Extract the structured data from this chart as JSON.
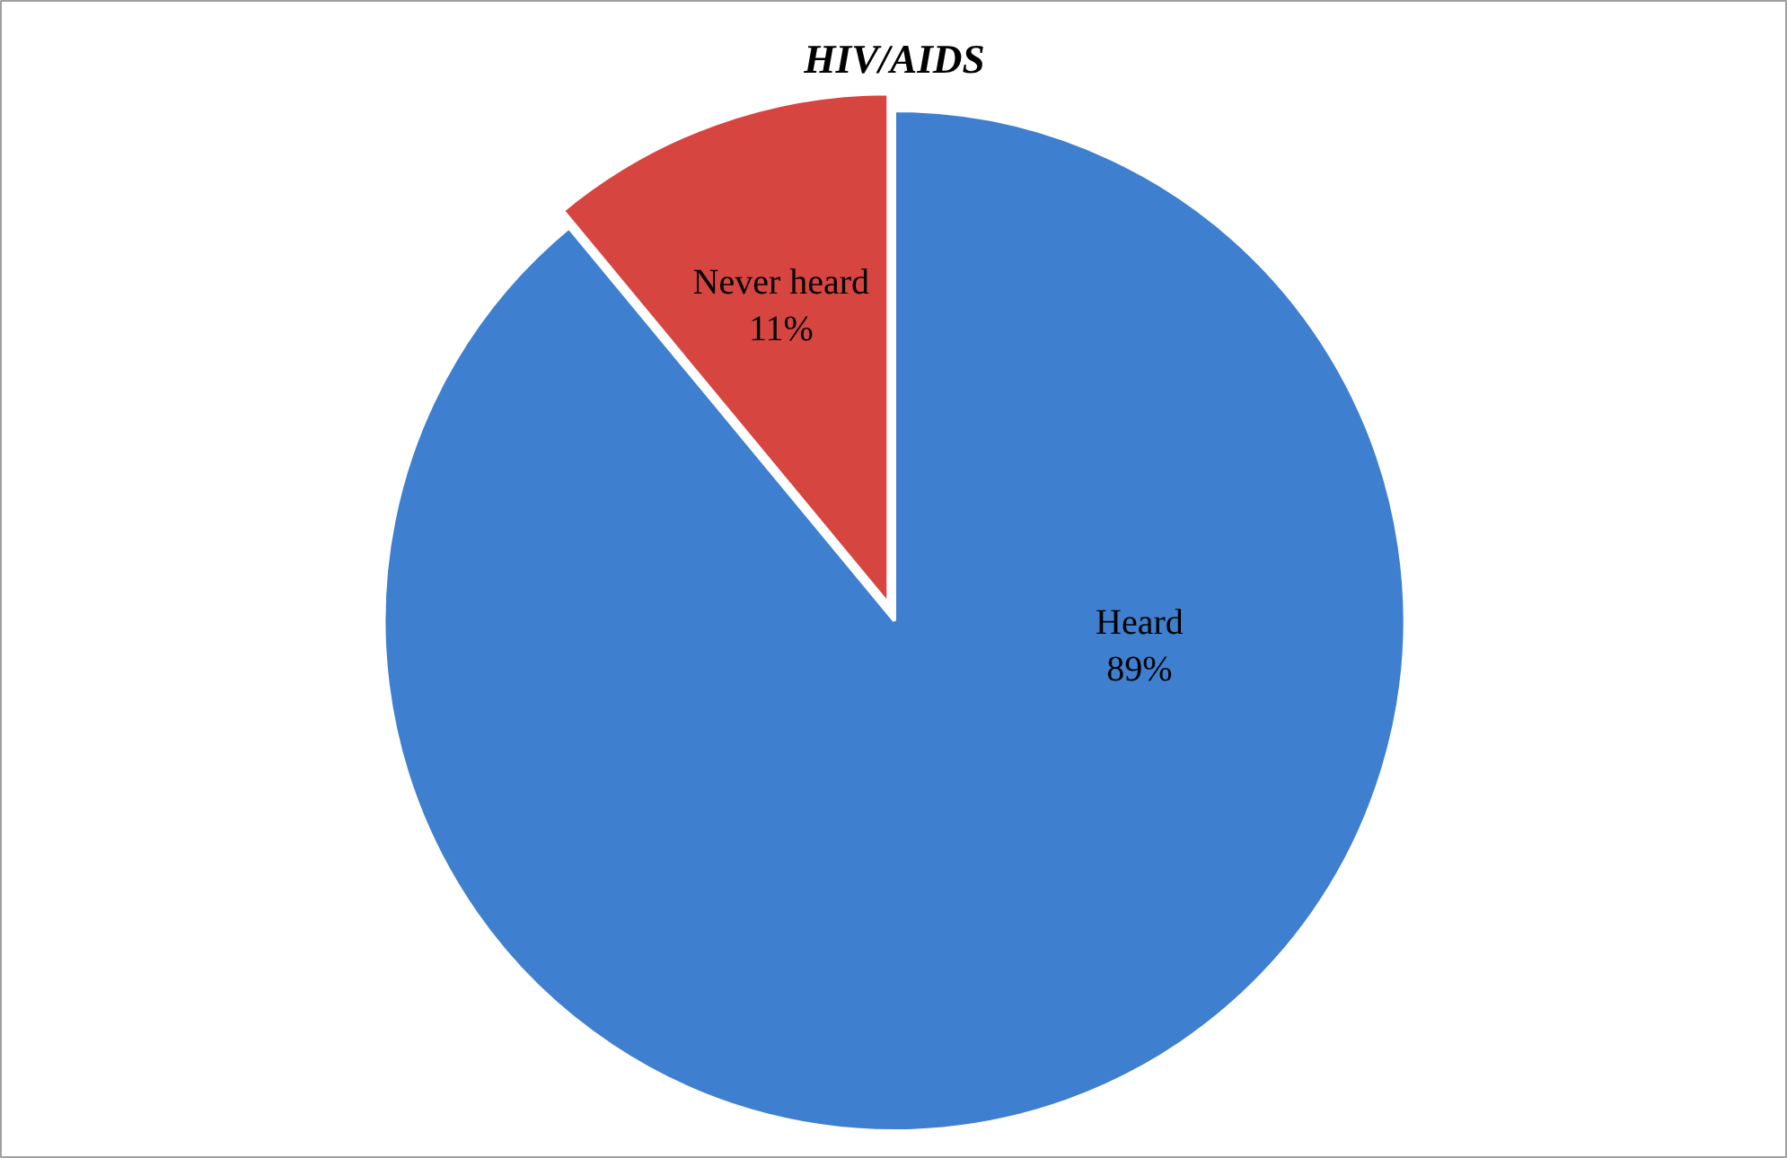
{
  "chart_data": {
    "type": "pie",
    "title": "HIV/AIDS",
    "categories": [
      "Heard",
      "Never heard"
    ],
    "values": [
      89,
      11
    ],
    "colors": [
      "#3f7fcf",
      "#d64540"
    ],
    "value_labels": [
      "89%",
      "11%"
    ]
  }
}
